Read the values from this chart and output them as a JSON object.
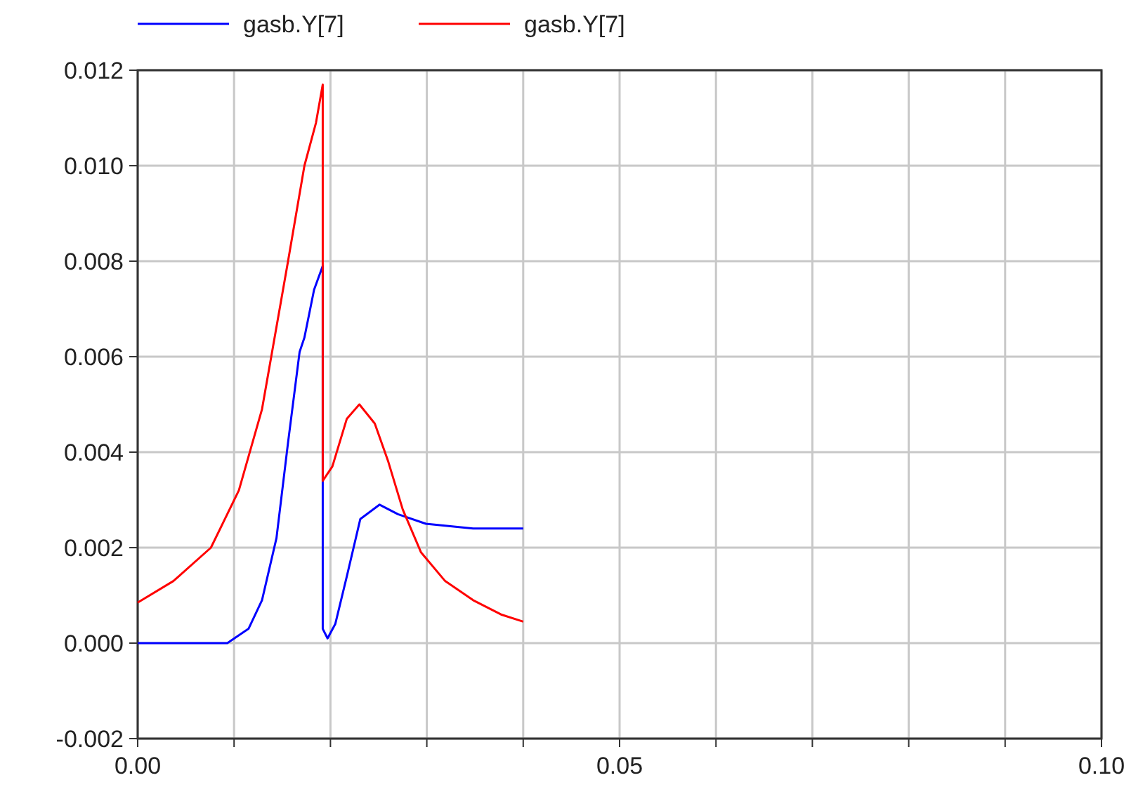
{
  "chart_data": {
    "type": "line",
    "xlim": [
      0,
      0.1
    ],
    "ylim": [
      -0.002,
      0.012
    ],
    "xticks": [
      {
        "value": 0,
        "label": "0.00"
      },
      {
        "value": 0.01,
        "label": null
      },
      {
        "value": 0.02,
        "label": null
      },
      {
        "value": 0.03,
        "label": null
      },
      {
        "value": 0.04,
        "label": null
      },
      {
        "value": 0.05,
        "label": "0.05"
      },
      {
        "value": 0.06,
        "label": null
      },
      {
        "value": 0.07,
        "label": null
      },
      {
        "value": 0.08,
        "label": null
      },
      {
        "value": 0.09,
        "label": null
      },
      {
        "value": 0.1,
        "label": "0.10"
      }
    ],
    "yticks": [
      {
        "value": -0.002,
        "label": "-0.002"
      },
      {
        "value": 0,
        "label": "0.000"
      },
      {
        "value": 0.002,
        "label": "0.002"
      },
      {
        "value": 0.004,
        "label": "0.004"
      },
      {
        "value": 0.006,
        "label": "0.006"
      },
      {
        "value": 0.008,
        "label": "0.008"
      },
      {
        "value": 0.01,
        "label": "0.010"
      },
      {
        "value": 0.012,
        "label": "0.012"
      }
    ],
    "grid": true,
    "legend": "top",
    "marker": "none",
    "line_style": "solid",
    "series": [
      {
        "name": "gasb.Y[7]",
        "color": "#0000ff",
        "x": [
          0,
          0.005,
          0.0093,
          0.0115,
          0.0129,
          0.0144,
          0.0156,
          0.0168,
          0.0173,
          0.0183,
          0.0192,
          0.0192,
          0.0197,
          0.0205,
          0.0217,
          0.0231,
          0.0251,
          0.027,
          0.0299,
          0.0348,
          0.04
        ],
        "values": [
          0,
          0,
          0,
          0.0003,
          0.0009,
          0.0022,
          0.0042,
          0.0061,
          0.0064,
          0.0074,
          0.0079,
          0.0003,
          0.0001,
          0.0004,
          0.0014,
          0.0026,
          0.0029,
          0.0027,
          0.0025,
          0.0024,
          0.0024
        ]
      },
      {
        "name": "gasb.Y[7]",
        "color": "#ff0000",
        "x": [
          0,
          0.0037,
          0.0076,
          0.0105,
          0.0129,
          0.0156,
          0.0173,
          0.0185,
          0.0192,
          0.0192,
          0.0202,
          0.0217,
          0.023,
          0.0246,
          0.026,
          0.0275,
          0.0294,
          0.0319,
          0.0348,
          0.0377,
          0.04
        ],
        "values": [
          0.00085,
          0.0013,
          0.002,
          0.0032,
          0.0049,
          0.008,
          0.01,
          0.0109,
          0.0117,
          0.0034,
          0.0037,
          0.0047,
          0.005,
          0.0046,
          0.0038,
          0.0028,
          0.0019,
          0.0013,
          0.0009,
          0.0006,
          0.00045
        ]
      }
    ]
  }
}
